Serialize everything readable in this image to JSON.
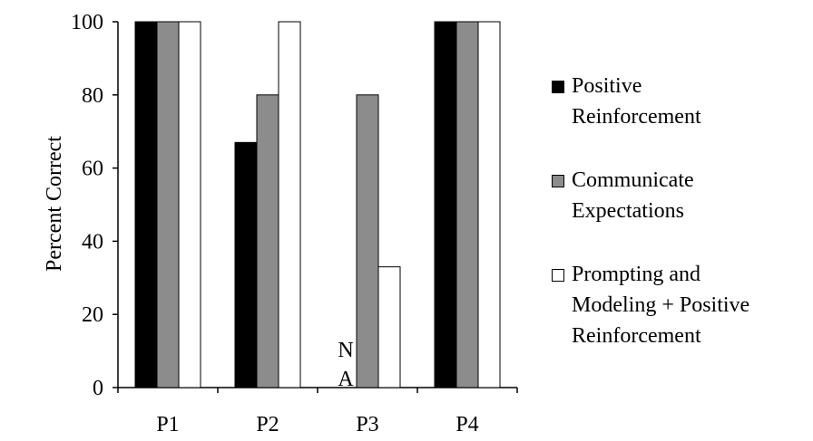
{
  "chart_data": {
    "type": "bar",
    "categories": [
      "P1",
      "P2",
      "P3",
      "P4"
    ],
    "series": [
      {
        "name": "Positive\nReinforcement",
        "color": "#000000",
        "values": [
          100,
          67,
          null,
          100
        ]
      },
      {
        "name": "Communicate\nExpectations",
        "color": "#8c8c8c",
        "values": [
          100,
          80,
          80,
          100
        ]
      },
      {
        "name": "Prompting and\nModeling + Positive\nReinforcement",
        "color": "#ffffff",
        "values": [
          100,
          100,
          33,
          100
        ]
      }
    ],
    "annotations": [
      {
        "category": "P3",
        "series": 0,
        "lines": [
          "N",
          "A"
        ]
      }
    ],
    "ylabel": "Percent Correct",
    "xlabel": "",
    "ylim": [
      0,
      100
    ],
    "yticks": [
      0,
      20,
      40,
      60,
      80,
      100
    ],
    "legend_position": "right",
    "grid": false
  }
}
